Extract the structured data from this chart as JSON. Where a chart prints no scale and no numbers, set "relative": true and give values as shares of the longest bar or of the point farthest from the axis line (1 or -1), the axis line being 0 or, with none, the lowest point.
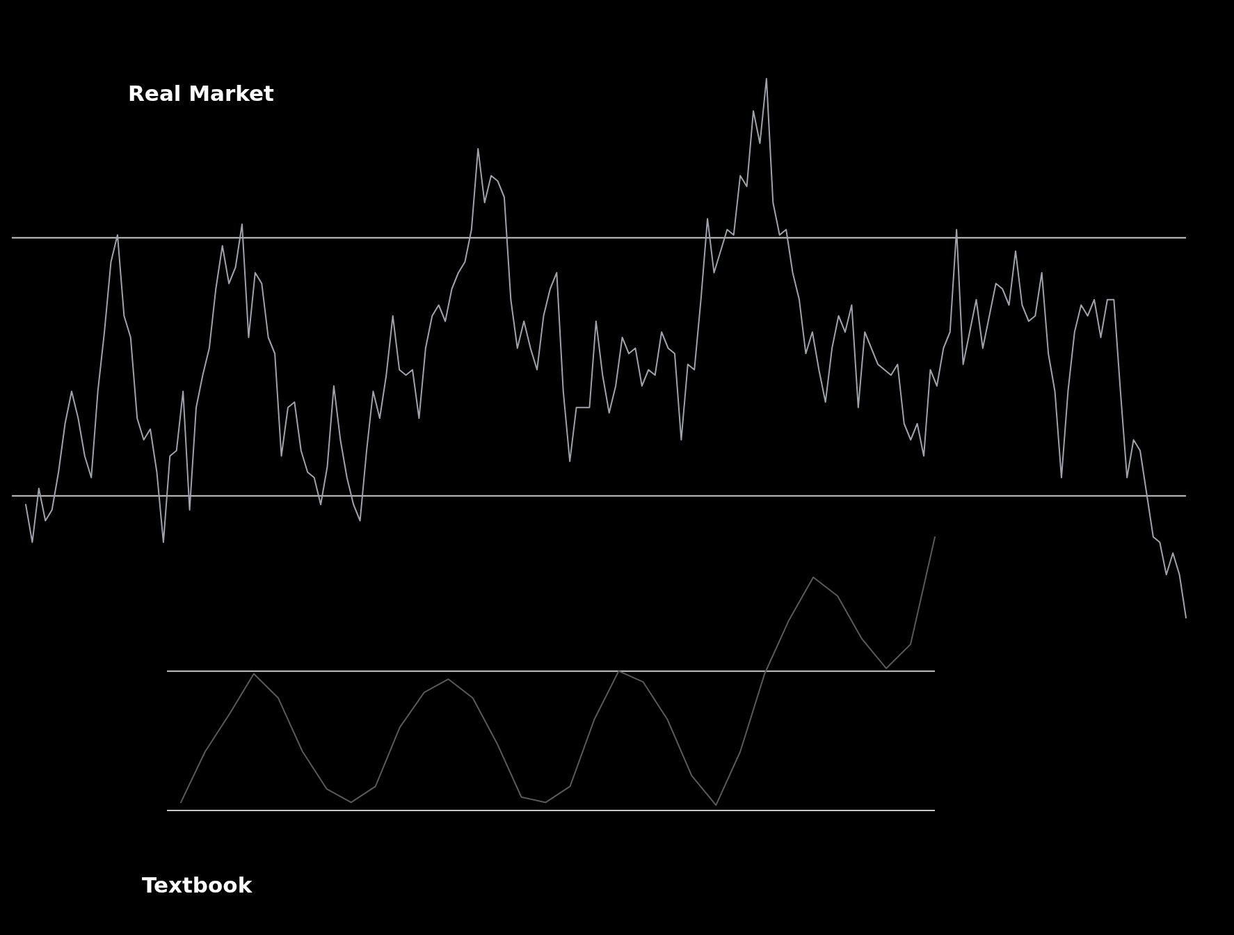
{
  "chart_data": [
    {
      "type": "line",
      "title": "Real Market",
      "relative": true,
      "categories": [
        null,
        null,
        null,
        null,
        null,
        null,
        null,
        null,
        null,
        null,
        null,
        null,
        null,
        null,
        null,
        null,
        null,
        null,
        null,
        null,
        null,
        null,
        null,
        null,
        null,
        null,
        null,
        null,
        null,
        null,
        null,
        null,
        null,
        null,
        null,
        null,
        null,
        null,
        null,
        null,
        null,
        null,
        null,
        null,
        null,
        null,
        null,
        null,
        null,
        null,
        null,
        null,
        null,
        null,
        null,
        null,
        null,
        null,
        null,
        null,
        null,
        null,
        null,
        null,
        null,
        null,
        null,
        null,
        null,
        null,
        null,
        null,
        null,
        null,
        null,
        null,
        null,
        null,
        null,
        null,
        null,
        null,
        null,
        null,
        null,
        null,
        null,
        null,
        null,
        null,
        null,
        null,
        null,
        null,
        null,
        null,
        null,
        null,
        null,
        null,
        null,
        null,
        null,
        null,
        null,
        null,
        null,
        null,
        null,
        null,
        null,
        null,
        null,
        null,
        null,
        null,
        null,
        null,
        null,
        null,
        null,
        null,
        null,
        null,
        null,
        null,
        null,
        null,
        null,
        null,
        null,
        null,
        null,
        null,
        null,
        null,
        null,
        null,
        null,
        null,
        null,
        null,
        null,
        null,
        null,
        null,
        null,
        null,
        null,
        null,
        null,
        null,
        null,
        null,
        null,
        null,
        null,
        null,
        null,
        null,
        null,
        null,
        null,
        null,
        null,
        null,
        null,
        null,
        null,
        null,
        null,
        null,
        null,
        null,
        null,
        null,
        null,
        null
      ],
      "series": [
        {
          "color": "#a0a3ab",
          "values": [
            0.21,
            0.14,
            0.24,
            0.18,
            0.2,
            0.27,
            0.36,
            0.42,
            0.37,
            0.3,
            0.26,
            0.42,
            0.53,
            0.66,
            0.71,
            0.56,
            0.52,
            0.37,
            0.33,
            0.35,
            0.27,
            0.14,
            0.3,
            0.31,
            0.42,
            0.2,
            0.39,
            0.45,
            0.5,
            0.61,
            0.69,
            0.62,
            0.65,
            0.73,
            0.52,
            0.64,
            0.62,
            0.52,
            0.49,
            0.3,
            0.39,
            0.4,
            0.31,
            0.27,
            0.26,
            0.21,
            0.28,
            0.43,
            0.33,
            0.26,
            0.21,
            0.18,
            0.31,
            0.42,
            0.37,
            0.45,
            0.56,
            0.46,
            0.45,
            0.46,
            0.37,
            0.5,
            0.56,
            0.58,
            0.55,
            0.61,
            0.64,
            0.66,
            0.72,
            0.87,
            0.77,
            0.82,
            0.81,
            0.78,
            0.59,
            0.5,
            0.55,
            0.5,
            0.46,
            0.56,
            0.61,
            0.64,
            0.42,
            0.29,
            0.39,
            0.39,
            0.39,
            0.55,
            0.45,
            0.38,
            0.43,
            0.52,
            0.49,
            0.5,
            0.43,
            0.46,
            0.45,
            0.53,
            0.5,
            0.49,
            0.33,
            0.47,
            0.46,
            0.59,
            0.74,
            0.64,
            0.68,
            0.72,
            0.71,
            0.82,
            0.8,
            0.94,
            0.88,
            1,
            0.77,
            0.71,
            0.72,
            0.64,
            0.59,
            0.49,
            0.53,
            0.46,
            0.4,
            0.5,
            0.56,
            0.53,
            0.58,
            0.39,
            0.53,
            0.5,
            0.47,
            0.46,
            0.45,
            0.47,
            0.36,
            0.33,
            0.36,
            0.3,
            0.46,
            0.43,
            0.5,
            0.53,
            0.72,
            0.47,
            0.53,
            0.59,
            0.5,
            0.56,
            0.62,
            0.61,
            0.58,
            0.68,
            0.58,
            0.55,
            0.56,
            0.64,
            0.49,
            0.42,
            0.26,
            0.42,
            0.53,
            0.58,
            0.56,
            0.59,
            0.52,
            0.59,
            0.59,
            0.42,
            0.26,
            0.33,
            0.31,
            0.23,
            0.15,
            0.14,
            0.08,
            0.12,
            0.08,
            0
          ]
        }
      ],
      "ref_lines": [
        {
          "axis": "y",
          "value": 0.705,
          "color": "#c8c8c8"
        },
        {
          "axis": "y",
          "value": 0.226,
          "color": "#c8c8c8"
        }
      ]
    },
    {
      "type": "line",
      "title": "Textbook",
      "relative": true,
      "categories": [
        null,
        null,
        null,
        null,
        null,
        null,
        null,
        null,
        null,
        null,
        null,
        null,
        null,
        null,
        null,
        null,
        null,
        null,
        null,
        null,
        null,
        null,
        null,
        null,
        null,
        null,
        null,
        null,
        null,
        null,
        null,
        null
      ],
      "series": [
        {
          "color": "#5a5a5a",
          "values": [
            0.01,
            0.2,
            0.34,
            0.49,
            0.4,
            0.2,
            0.06,
            0.01,
            0.07,
            0.29,
            0.42,
            0.47,
            0.4,
            0.23,
            0.03,
            0.01,
            0.07,
            0.32,
            0.5,
            0.46,
            0.32,
            0.11,
            0,
            0.2,
            0.49,
            0.69,
            0.85,
            0.78,
            0.62,
            0.51,
            0.6,
            1
          ]
        }
      ],
      "ref_lines": [
        {
          "axis": "y",
          "value": 0.5,
          "color": "#c8c8c8"
        },
        {
          "axis": "y",
          "value": -0.02,
          "color": "#c8c8c8"
        }
      ]
    }
  ]
}
